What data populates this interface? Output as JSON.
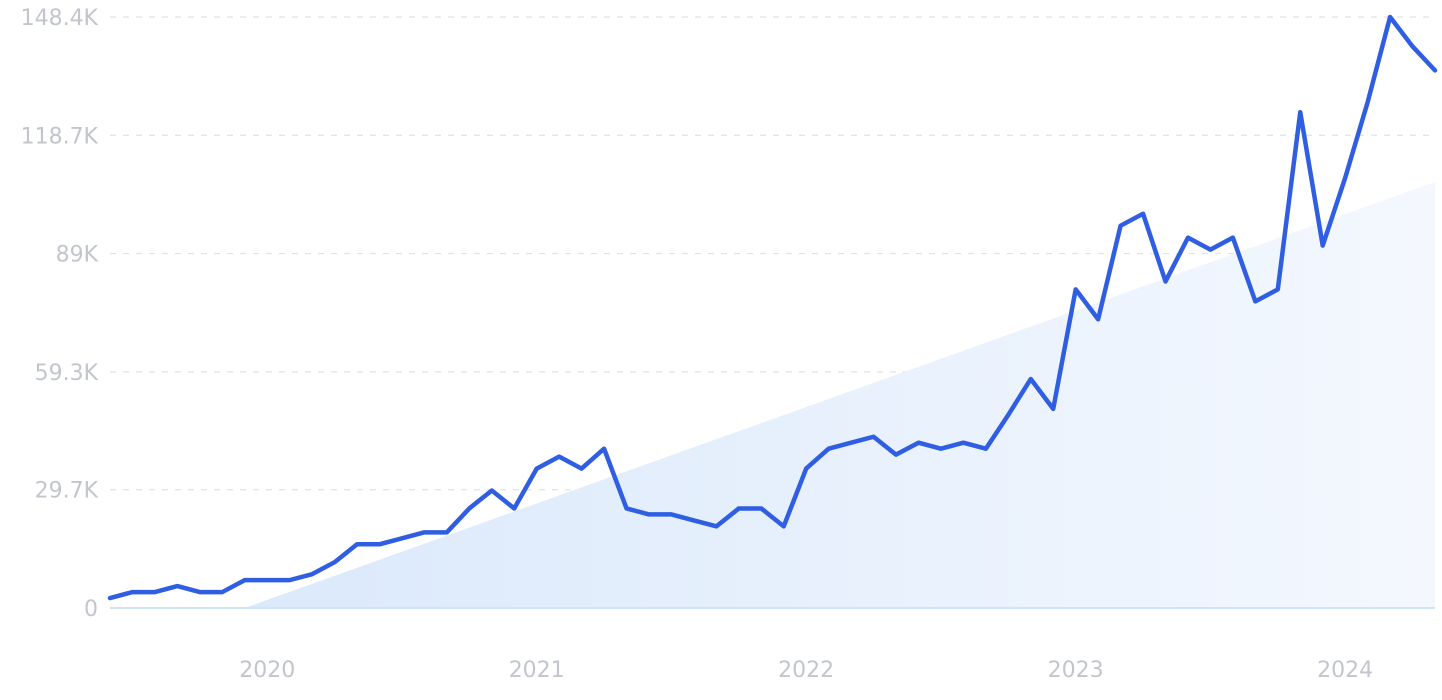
{
  "colors": {
    "line": "#2f5ee3",
    "trend_fill_start": "#dbe9fb",
    "trend_fill_end": "#f4f8fe"
  },
  "chart_data": {
    "type": "line",
    "title": "",
    "xlabel": "",
    "ylabel": "",
    "ylim": [
      0,
      148400
    ],
    "y_ticks": [
      {
        "value": 0,
        "label": "0"
      },
      {
        "value": 29700,
        "label": "29.7K"
      },
      {
        "value": 59300,
        "label": "59.3K"
      },
      {
        "value": 89000,
        "label": "89K"
      },
      {
        "value": 118700,
        "label": "118.7K"
      },
      {
        "value": 148400,
        "label": "148.4K"
      }
    ],
    "xlim": [
      "2019-06",
      "2024-05"
    ],
    "x_ticks": [
      {
        "value": "2020-01",
        "label": "2020"
      },
      {
        "value": "2021-01",
        "label": "2021"
      },
      {
        "value": "2022-01",
        "label": "2022"
      },
      {
        "value": "2023-01",
        "label": "2023"
      },
      {
        "value": "2024-01",
        "label": "2024"
      }
    ],
    "grid": true,
    "legend": "none",
    "series": [
      {
        "x": [
          "2019-06",
          "2019-07",
          "2019-08",
          "2019-09",
          "2019-10",
          "2019-11",
          "2019-12",
          "2020-01",
          "2020-02",
          "2020-03",
          "2020-04",
          "2020-05",
          "2020-06",
          "2020-07",
          "2020-08",
          "2020-09",
          "2020-10",
          "2020-11",
          "2020-12",
          "2021-01",
          "2021-02",
          "2021-03",
          "2021-04",
          "2021-05",
          "2021-06",
          "2021-07",
          "2021-08",
          "2021-09",
          "2021-10",
          "2021-11",
          "2021-12",
          "2022-01",
          "2022-02",
          "2022-03",
          "2022-04",
          "2022-05",
          "2022-06",
          "2022-07",
          "2022-08",
          "2022-09",
          "2022-10",
          "2022-11",
          "2022-12",
          "2023-01",
          "2023-02",
          "2023-03",
          "2023-04",
          "2023-05",
          "2023-06",
          "2023-07",
          "2023-08",
          "2023-09",
          "2023-10",
          "2023-11",
          "2023-12",
          "2024-01",
          "2024-02",
          "2024-03",
          "2024-04",
          "2024-05"
        ],
        "values": [
          2500,
          4000,
          4000,
          5500,
          4000,
          4000,
          7000,
          7000,
          7000,
          8500,
          11500,
          16000,
          16000,
          17500,
          19000,
          19000,
          25000,
          29500,
          25000,
          35000,
          38000,
          35000,
          40000,
          25000,
          23500,
          23500,
          22000,
          20500,
          25000,
          25000,
          20500,
          35000,
          40000,
          41500,
          43000,
          38500,
          41500,
          40000,
          41500,
          40000,
          48500,
          57500,
          50000,
          80000,
          72500,
          96000,
          99000,
          82000,
          93000,
          90000,
          93000,
          77000,
          80000,
          124500,
          91000,
          108000,
          127000,
          148400,
          141000,
          135000
        ]
      }
    ],
    "trend": {
      "start": {
        "x": "2019-12",
        "y": 0
      },
      "end": {
        "x": "2024-05",
        "y": 107000
      }
    }
  }
}
